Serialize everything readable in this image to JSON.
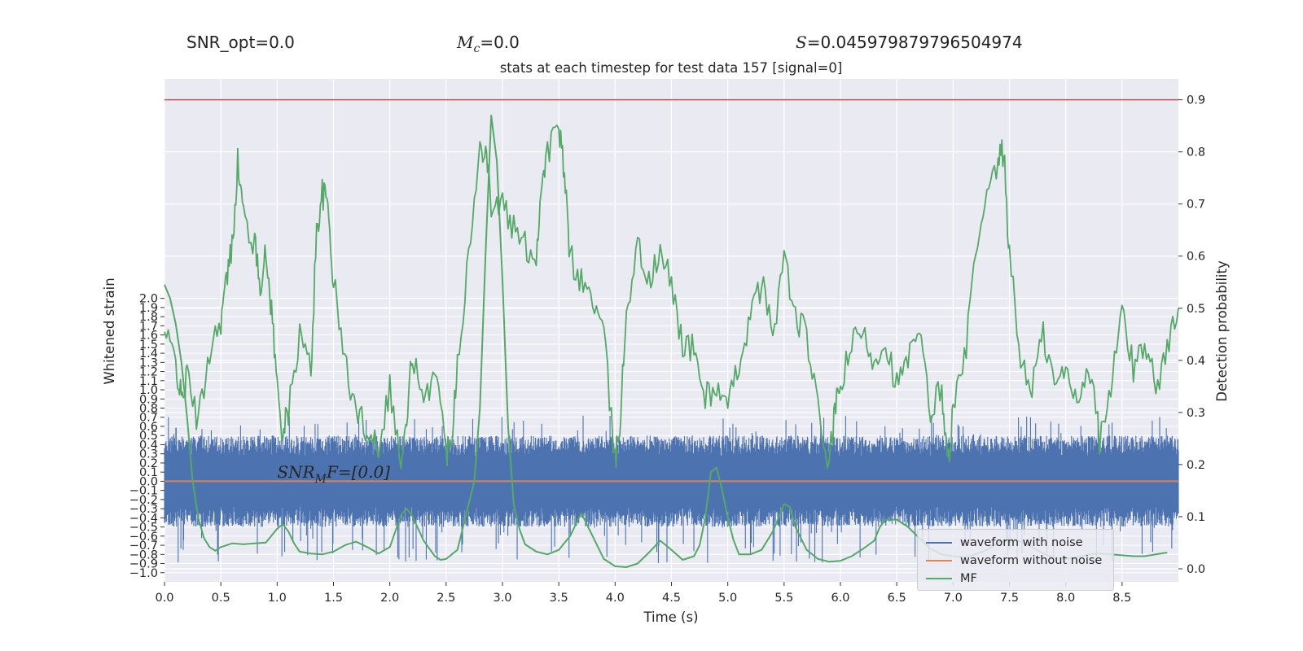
{
  "header": {
    "snr_opt_label": "SNR_opt=0.0",
    "mc_symbol": "M",
    "mc_subscript": "c",
    "mc_value": "=0.0",
    "s_symbol": "S",
    "s_value": "=0.045979879796504974"
  },
  "colors": {
    "plot_bg": "#eaeaf2",
    "grid": "#ffffff",
    "noise": "#4c72b0",
    "clean": "#dd8452",
    "mf": "#55a868",
    "threshold": "#c44e52",
    "text": "#262626"
  },
  "chart_data": {
    "type": "line",
    "title": "stats at each timestep for test data 157 [signal=0]",
    "xlabel": "Time (s)",
    "ylabel_left": "Whitened strain",
    "ylabel_right": "Detection probability",
    "xlim": [
      0.0,
      9.0
    ],
    "ylim_left": [
      -1.1,
      4.4
    ],
    "ylim_right": [
      -0.025,
      0.94
    ],
    "x_ticks": [
      "0.0",
      "0.5",
      "1.0",
      "1.5",
      "2.0",
      "2.5",
      "3.0",
      "3.5",
      "4.0",
      "4.5",
      "5.0",
      "5.5",
      "6.0",
      "6.5",
      "7.0",
      "7.5",
      "8.0",
      "8.5"
    ],
    "y_left_ticks": [
      "2.0",
      "1.9",
      "1.8",
      "1.7",
      "1.6",
      "1.5",
      "1.4",
      "1.3",
      "1.2",
      "1.1",
      "1.0",
      "0.9",
      "0.8",
      "0.7",
      "0.6",
      "0.5",
      "0.4",
      "0.3",
      "0.2",
      "0.1",
      "0.0",
      "−0.1",
      "−0.2",
      "−0.3",
      "−0.4",
      "−0.5",
      "−0.6",
      "−0.7",
      "−0.8",
      "−0.9",
      "−1.0"
    ],
    "y_right_ticks": [
      "0.0",
      "0.1",
      "0.2",
      "0.3",
      "0.4",
      "0.5",
      "0.6",
      "0.7",
      "0.8",
      "0.9"
    ],
    "threshold": 0.9,
    "annotation": {
      "prefix": "SNR",
      "sub": "M",
      "suffix": "F=[0.0]",
      "x": 1.0,
      "y": 0.04
    },
    "series": [
      {
        "name": "waveform with noise",
        "axis": "left",
        "description": "dense noise, amplitude about ±0.5, occasional spikes to about 0.7 and -0.9",
        "envelope": {
          "typical": 0.5,
          "max_pos": 0.72,
          "max_neg": -0.92
        }
      },
      {
        "name": "waveform without noise",
        "axis": "left",
        "x": [
          0.0,
          9.0
        ],
        "y": [
          0.0,
          0.0
        ]
      },
      {
        "name": "MF",
        "axis": "left",
        "x": [
          0.0,
          0.05,
          0.1,
          0.15,
          0.2,
          0.25,
          0.3,
          0.35,
          0.4,
          0.45,
          0.5,
          0.6,
          0.7,
          0.8,
          0.9,
          1.0,
          1.05,
          1.1,
          1.15,
          1.2,
          1.3,
          1.4,
          1.5,
          1.6,
          1.7,
          1.8,
          1.9,
          2.0,
          2.1,
          2.15,
          2.2,
          2.3,
          2.4,
          2.45,
          2.5,
          2.6,
          2.7,
          2.75,
          2.8,
          2.85,
          2.9,
          2.95,
          3.0,
          3.05,
          3.1,
          3.15,
          3.2,
          3.3,
          3.4,
          3.5,
          3.6,
          3.7,
          3.8,
          3.9,
          4.0,
          4.1,
          4.2,
          4.3,
          4.4,
          4.5,
          4.6,
          4.7,
          4.75,
          4.8,
          4.85,
          4.9,
          4.95,
          5.0,
          5.05,
          5.1,
          5.2,
          5.3,
          5.4,
          5.5,
          5.55,
          5.6,
          5.7,
          5.8,
          5.9,
          6.0,
          6.1,
          6.2,
          6.3,
          6.35,
          6.4,
          6.5,
          6.6,
          6.7,
          6.8,
          6.9,
          7.0,
          7.1,
          7.2,
          7.3,
          7.4,
          7.5,
          7.6,
          7.7,
          7.8,
          7.9,
          8.0,
          8.1,
          8.2,
          8.3,
          8.4,
          8.5,
          8.6,
          8.7,
          8.8,
          8.9
        ],
        "y": [
          2.15,
          2.0,
          1.72,
          1.3,
          0.7,
          0.0,
          -0.4,
          -0.62,
          -0.72,
          -0.76,
          -0.72,
          -0.68,
          -0.69,
          -0.68,
          -0.67,
          -0.52,
          -0.47,
          -0.55,
          -0.68,
          -0.77,
          -0.79,
          -0.8,
          -0.77,
          -0.7,
          -0.66,
          -0.72,
          -0.79,
          -0.72,
          -0.37,
          -0.3,
          -0.38,
          -0.65,
          -0.82,
          -0.86,
          -0.85,
          -0.75,
          -0.25,
          0.0,
          0.8,
          2.5,
          4.0,
          3.5,
          2.2,
          0.6,
          -0.25,
          -0.52,
          -0.69,
          -0.77,
          -0.8,
          -0.75,
          -0.6,
          -0.35,
          -0.6,
          -0.85,
          -0.93,
          -0.94,
          -0.9,
          -0.78,
          -0.65,
          -0.75,
          -0.86,
          -0.82,
          -0.7,
          -0.4,
          0.1,
          0.15,
          -0.1,
          -0.4,
          -0.64,
          -0.8,
          -0.8,
          -0.75,
          -0.55,
          -0.25,
          -0.28,
          -0.5,
          -0.75,
          -0.85,
          -0.88,
          -0.87,
          -0.82,
          -0.74,
          -0.65,
          -0.5,
          -0.42,
          -0.42,
          -0.5,
          -0.62,
          -0.74,
          -0.8,
          -0.82,
          -0.83,
          -0.8,
          -0.75,
          -0.67,
          -0.63,
          -0.66,
          -0.72,
          -0.79,
          -0.84,
          -0.85,
          -0.83,
          -0.8,
          -0.79,
          -0.8,
          -0.81,
          -0.82,
          -0.82,
          -0.8,
          -0.78
        ]
      },
      {
        "name": "Detection probability",
        "axis": "right",
        "x": [
          0.0,
          0.1,
          0.15,
          0.2,
          0.3,
          0.4,
          0.5,
          0.55,
          0.6,
          0.65,
          0.7,
          0.8,
          0.85,
          0.9,
          0.95,
          1.0,
          1.05,
          1.1,
          1.2,
          1.3,
          1.35,
          1.4,
          1.45,
          1.5,
          1.6,
          1.7,
          1.8,
          1.9,
          2.0,
          2.1,
          2.15,
          2.2,
          2.3,
          2.4,
          2.5,
          2.55,
          2.6,
          2.7,
          2.8,
          2.85,
          2.9,
          3.0,
          3.1,
          3.2,
          3.3,
          3.35,
          3.4,
          3.5,
          3.55,
          3.6,
          3.7,
          3.8,
          3.9,
          4.0,
          4.05,
          4.1,
          4.2,
          4.3,
          4.4,
          4.5,
          4.6,
          4.7,
          4.8,
          4.9,
          5.0,
          5.1,
          5.2,
          5.3,
          5.4,
          5.5,
          5.6,
          5.7,
          5.8,
          5.9,
          5.95,
          6.0,
          6.1,
          6.2,
          6.3,
          6.4,
          6.5,
          6.6,
          6.7,
          6.8,
          6.9,
          6.95,
          7.0,
          7.1,
          7.2,
          7.3,
          7.4,
          7.45,
          7.5,
          7.6,
          7.7,
          7.8,
          7.9,
          8.0,
          8.1,
          8.2,
          8.3,
          8.4,
          8.5,
          8.6,
          8.7,
          8.8,
          8.9,
          9.0
        ],
        "y": [
          0.45,
          0.4,
          0.32,
          0.37,
          0.28,
          0.42,
          0.48,
          0.55,
          0.62,
          0.78,
          0.68,
          0.62,
          0.55,
          0.6,
          0.5,
          0.35,
          0.26,
          0.3,
          0.45,
          0.38,
          0.65,
          0.72,
          0.7,
          0.55,
          0.4,
          0.3,
          0.27,
          0.24,
          0.35,
          0.2,
          0.28,
          0.42,
          0.3,
          0.4,
          0.22,
          0.26,
          0.4,
          0.6,
          0.8,
          0.82,
          0.7,
          0.7,
          0.65,
          0.62,
          0.6,
          0.75,
          0.8,
          0.85,
          0.75,
          0.6,
          0.55,
          0.52,
          0.45,
          0.2,
          0.3,
          0.5,
          0.62,
          0.55,
          0.6,
          0.55,
          0.43,
          0.42,
          0.33,
          0.35,
          0.3,
          0.4,
          0.48,
          0.55,
          0.45,
          0.6,
          0.48,
          0.45,
          0.3,
          0.2,
          0.3,
          0.35,
          0.43,
          0.45,
          0.4,
          0.44,
          0.35,
          0.4,
          0.45,
          0.3,
          0.35,
          0.2,
          0.3,
          0.4,
          0.6,
          0.7,
          0.78,
          0.8,
          0.6,
          0.4,
          0.35,
          0.45,
          0.35,
          0.38,
          0.32,
          0.4,
          0.25,
          0.34,
          0.5,
          0.38,
          0.44,
          0.35,
          0.42,
          0.5
        ]
      }
    ]
  }
}
